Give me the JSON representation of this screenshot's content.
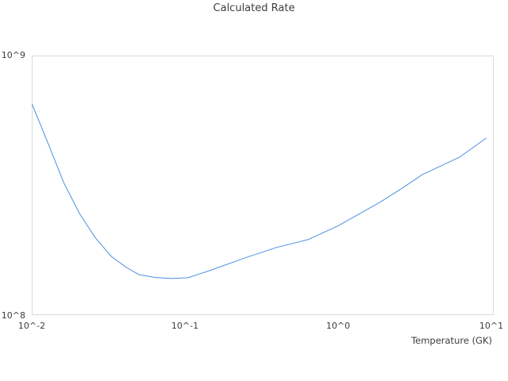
{
  "title": "Calculated Rate",
  "axes": {
    "x_label": "Temperature (GK)",
    "x_ticks": [
      "10^-2",
      "10^-1",
      "10^0",
      "10^1"
    ],
    "y_ticks": [
      "10^8",
      "10^9"
    ]
  },
  "colors": {
    "line": "#4a90e2",
    "plot_border": "#d9d9d9",
    "text": "#3d3d3d"
  },
  "chart_data": {
    "type": "line",
    "title": "Calculated Rate",
    "xlabel": "Temperature (GK)",
    "ylabel": "",
    "x_scale": "log",
    "y_scale": "log",
    "xlim": [
      0.01,
      10.5
    ],
    "ylim": [
      100000000.0,
      1000000000.0
    ],
    "grid": false,
    "legend": false,
    "series": [
      {
        "name": "calculated-rate",
        "x": [
          0.01,
          0.0113,
          0.0127,
          0.0161,
          0.0205,
          0.026,
          0.033,
          0.041,
          0.05,
          0.063,
          0.081,
          0.105,
          0.15,
          0.25,
          0.4,
          0.64,
          1.0,
          1.9,
          2.6,
          3.6,
          6.3,
          9.4
        ],
        "y": [
          650000000.0,
          545000000.0,
          460000000.0,
          324000000.0,
          245000000.0,
          198000000.0,
          168000000.0,
          153000000.0,
          143000000.0,
          139500000.0,
          138000000.0,
          139000000.0,
          149000000.0,
          166000000.0,
          182000000.0,
          195000000.0,
          220000000.0,
          272000000.0,
          306000000.0,
          348000000.0,
          406000000.0,
          481000000.0
        ]
      }
    ]
  }
}
